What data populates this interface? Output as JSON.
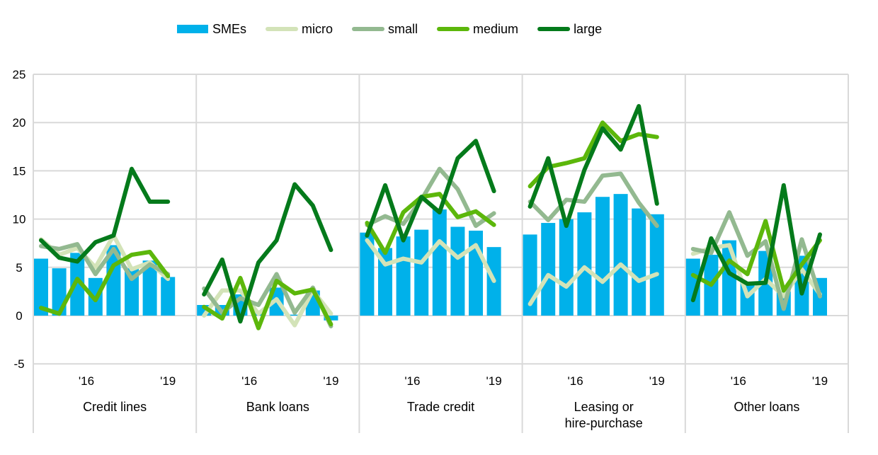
{
  "chart_data": {
    "type": "bar",
    "title": "",
    "xlabel": "",
    "ylabel": "",
    "ylim": [
      -5,
      25
    ],
    "yticks": [
      -5,
      0,
      5,
      10,
      15,
      20,
      25
    ],
    "grid": true,
    "legend_position": "top-center",
    "period_tick_labels": [
      "'16",
      "'19"
    ],
    "colors": {
      "SMEs": "#00b1ea",
      "micro": "#d3e3b8",
      "small": "#93b990",
      "medium": "#5cb70b",
      "large": "#047a1b"
    },
    "legend": [
      {
        "name": "SMEs",
        "kind": "bar"
      },
      {
        "name": "micro",
        "kind": "line"
      },
      {
        "name": "small",
        "kind": "line"
      },
      {
        "name": "medium",
        "kind": "line"
      },
      {
        "name": "large",
        "kind": "line"
      }
    ],
    "groups": [
      {
        "label": "Credit lines",
        "series": {
          "SMEs": [
            5.9,
            4.9,
            6.5,
            3.9,
            7.3,
            4.9,
            5.7,
            4.0
          ],
          "micro": [
            7.9,
            6.3,
            7.0,
            5.0,
            8.3,
            4.8,
            5.5,
            3.8
          ],
          "small": [
            7.2,
            6.9,
            7.4,
            4.3,
            6.9,
            3.8,
            5.3,
            4.3
          ],
          "medium": [
            0.8,
            0.2,
            3.8,
            1.6,
            5.2,
            6.3,
            6.6,
            4.1
          ],
          "large": [
            7.8,
            6.0,
            5.6,
            7.6,
            8.3,
            15.2,
            11.8,
            11.8
          ]
        }
      },
      {
        "label": "Bank loans",
        "series": {
          "SMEs": [
            1.1,
            1.1,
            2.2,
            0.5,
            2.9,
            0.1,
            2.6,
            -0.5
          ],
          "micro": [
            0.0,
            2.6,
            2.6,
            0.2,
            1.7,
            -1.0,
            2.6,
            0.2
          ],
          "small": [
            2.8,
            0.3,
            1.8,
            1.1,
            4.3,
            0.3,
            2.9,
            -1.1
          ],
          "medium": [
            0.9,
            -0.3,
            3.9,
            -1.3,
            3.6,
            2.3,
            2.7,
            -0.9
          ],
          "large": [
            2.2,
            5.8,
            -0.6,
            5.5,
            7.8,
            13.6,
            11.4,
            6.8
          ]
        }
      },
      {
        "label": "Trade credit",
        "series": {
          "SMEs": [
            8.6,
            7.0,
            8.2,
            8.9,
            11.0,
            9.2,
            8.8,
            7.1
          ],
          "micro": [
            7.8,
            5.3,
            5.9,
            5.5,
            7.7,
            6.0,
            7.3,
            3.6
          ],
          "small": [
            9.4,
            10.3,
            9.5,
            12.0,
            15.2,
            13.1,
            9.3,
            10.6
          ],
          "medium": [
            9.6,
            6.5,
            10.7,
            12.3,
            12.6,
            10.2,
            10.8,
            9.4
          ],
          "large": [
            8.3,
            13.5,
            7.8,
            12.3,
            10.7,
            16.3,
            18.1,
            12.9
          ]
        }
      },
      {
        "label": "Leasing or hire-purchase",
        "label_lines": [
          "Leasing or",
          "hire-purchase"
        ],
        "series": {
          "SMEs": [
            8.4,
            9.6,
            10.0,
            10.7,
            12.3,
            12.6,
            11.1,
            10.5
          ],
          "micro": [
            1.2,
            4.2,
            3.0,
            5.0,
            3.5,
            5.3,
            3.6,
            4.3
          ],
          "small": [
            11.8,
            9.9,
            12.0,
            11.8,
            14.5,
            14.7,
            11.7,
            9.3
          ],
          "medium": [
            13.4,
            15.4,
            15.8,
            16.3,
            20.0,
            18.1,
            18.8,
            18.5
          ],
          "large": [
            11.3,
            16.3,
            9.3,
            15.1,
            19.4,
            17.2,
            21.7,
            11.6
          ]
        }
      },
      {
        "label": "Other loans",
        "series": {
          "SMEs": [
            5.9,
            6.3,
            7.8,
            3.5,
            6.7,
            2.5,
            6.2,
            3.9
          ],
          "micro": [
            6.4,
            7.0,
            7.3,
            2.0,
            3.8,
            2.0,
            4.8,
            2.2
          ],
          "small": [
            6.9,
            6.5,
            10.7,
            6.2,
            7.7,
            0.7,
            7.9,
            2.0
          ],
          "medium": [
            4.2,
            3.2,
            5.7,
            4.3,
            9.8,
            2.6,
            5.3,
            7.8
          ],
          "large": [
            1.6,
            8.0,
            4.4,
            3.3,
            3.4,
            13.5,
            2.3,
            8.4
          ]
        }
      }
    ]
  }
}
